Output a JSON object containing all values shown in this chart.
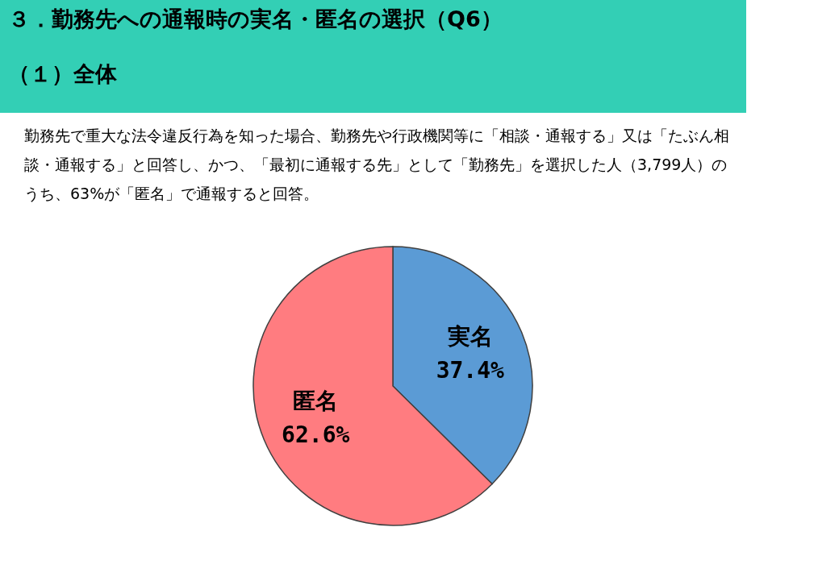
{
  "chart_data": {
    "type": "pie",
    "title": "３．勤務先への通報時の実名・匿名の選択（Q6）",
    "subtitle": "（１）全体",
    "annotations": [
      "勤務先で重大な法令違反行為を知った場合、勤務先や行政機関等に「相談・通報する」又は「たぶん相談・通報する」と回答し、かつ、「最初に通報する先」として「勤務先」を選択した人（3,799人）のうち、63%が「匿名」で通報すると回答。"
    ],
    "categories": [
      "実名",
      "匿名"
    ],
    "values": [
      37.4,
      62.6
    ],
    "colors": [
      "#5b9bd5",
      "#ff7c80"
    ],
    "value_labels": [
      "37.4%",
      "62.6%"
    ]
  }
}
